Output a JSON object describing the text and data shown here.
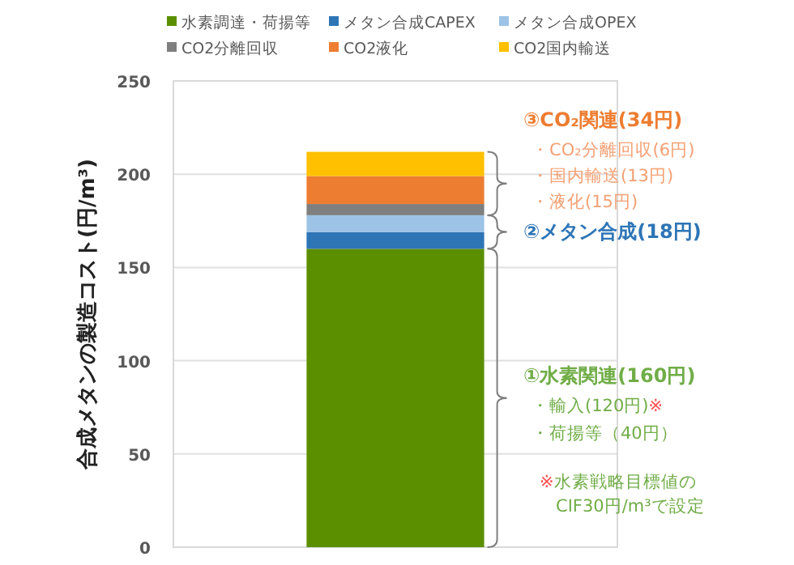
{
  "chart_data": {
    "type": "bar",
    "stacked": true,
    "categories": [
      null
    ],
    "ylabel": "合成メタンの製造コスト(円/m³)",
    "ylim": [
      0,
      250
    ],
    "yticks": [
      0,
      50,
      100,
      150,
      200,
      250
    ],
    "grid": "y",
    "legend": "top",
    "series": [
      {
        "name": "水素調達・荷揚等",
        "color": "#5b8f00",
        "values": [
          160
        ]
      },
      {
        "name": "メタン合成CAPEX",
        "color": "#2e75b6",
        "values": [
          9
        ]
      },
      {
        "name": "メタン合成OPEX",
        "color": "#9dc3e6",
        "values": [
          9
        ]
      },
      {
        "name": "CO2分離回収",
        "color": "#7f7f7f",
        "values": [
          6
        ]
      },
      {
        "name": "CO2液化",
        "color": "#ed7d31",
        "values": [
          15
        ]
      },
      {
        "name": "CO2国内輸送",
        "color": "#ffc000",
        "values": [
          13
        ]
      }
    ],
    "annotations": [
      "③CO₂関連(34円)",
      "・CO₂分離回収(6円)",
      "・国内輸送(13円)",
      "・液化(15円)",
      "②メタン合成(18円)",
      "①水素関連(160円)",
      "・輸入(120円)※",
      "・荷揚等（40円）",
      "※水素戦略目標値の\nCIF30円/m³で設定"
    ]
  }
}
